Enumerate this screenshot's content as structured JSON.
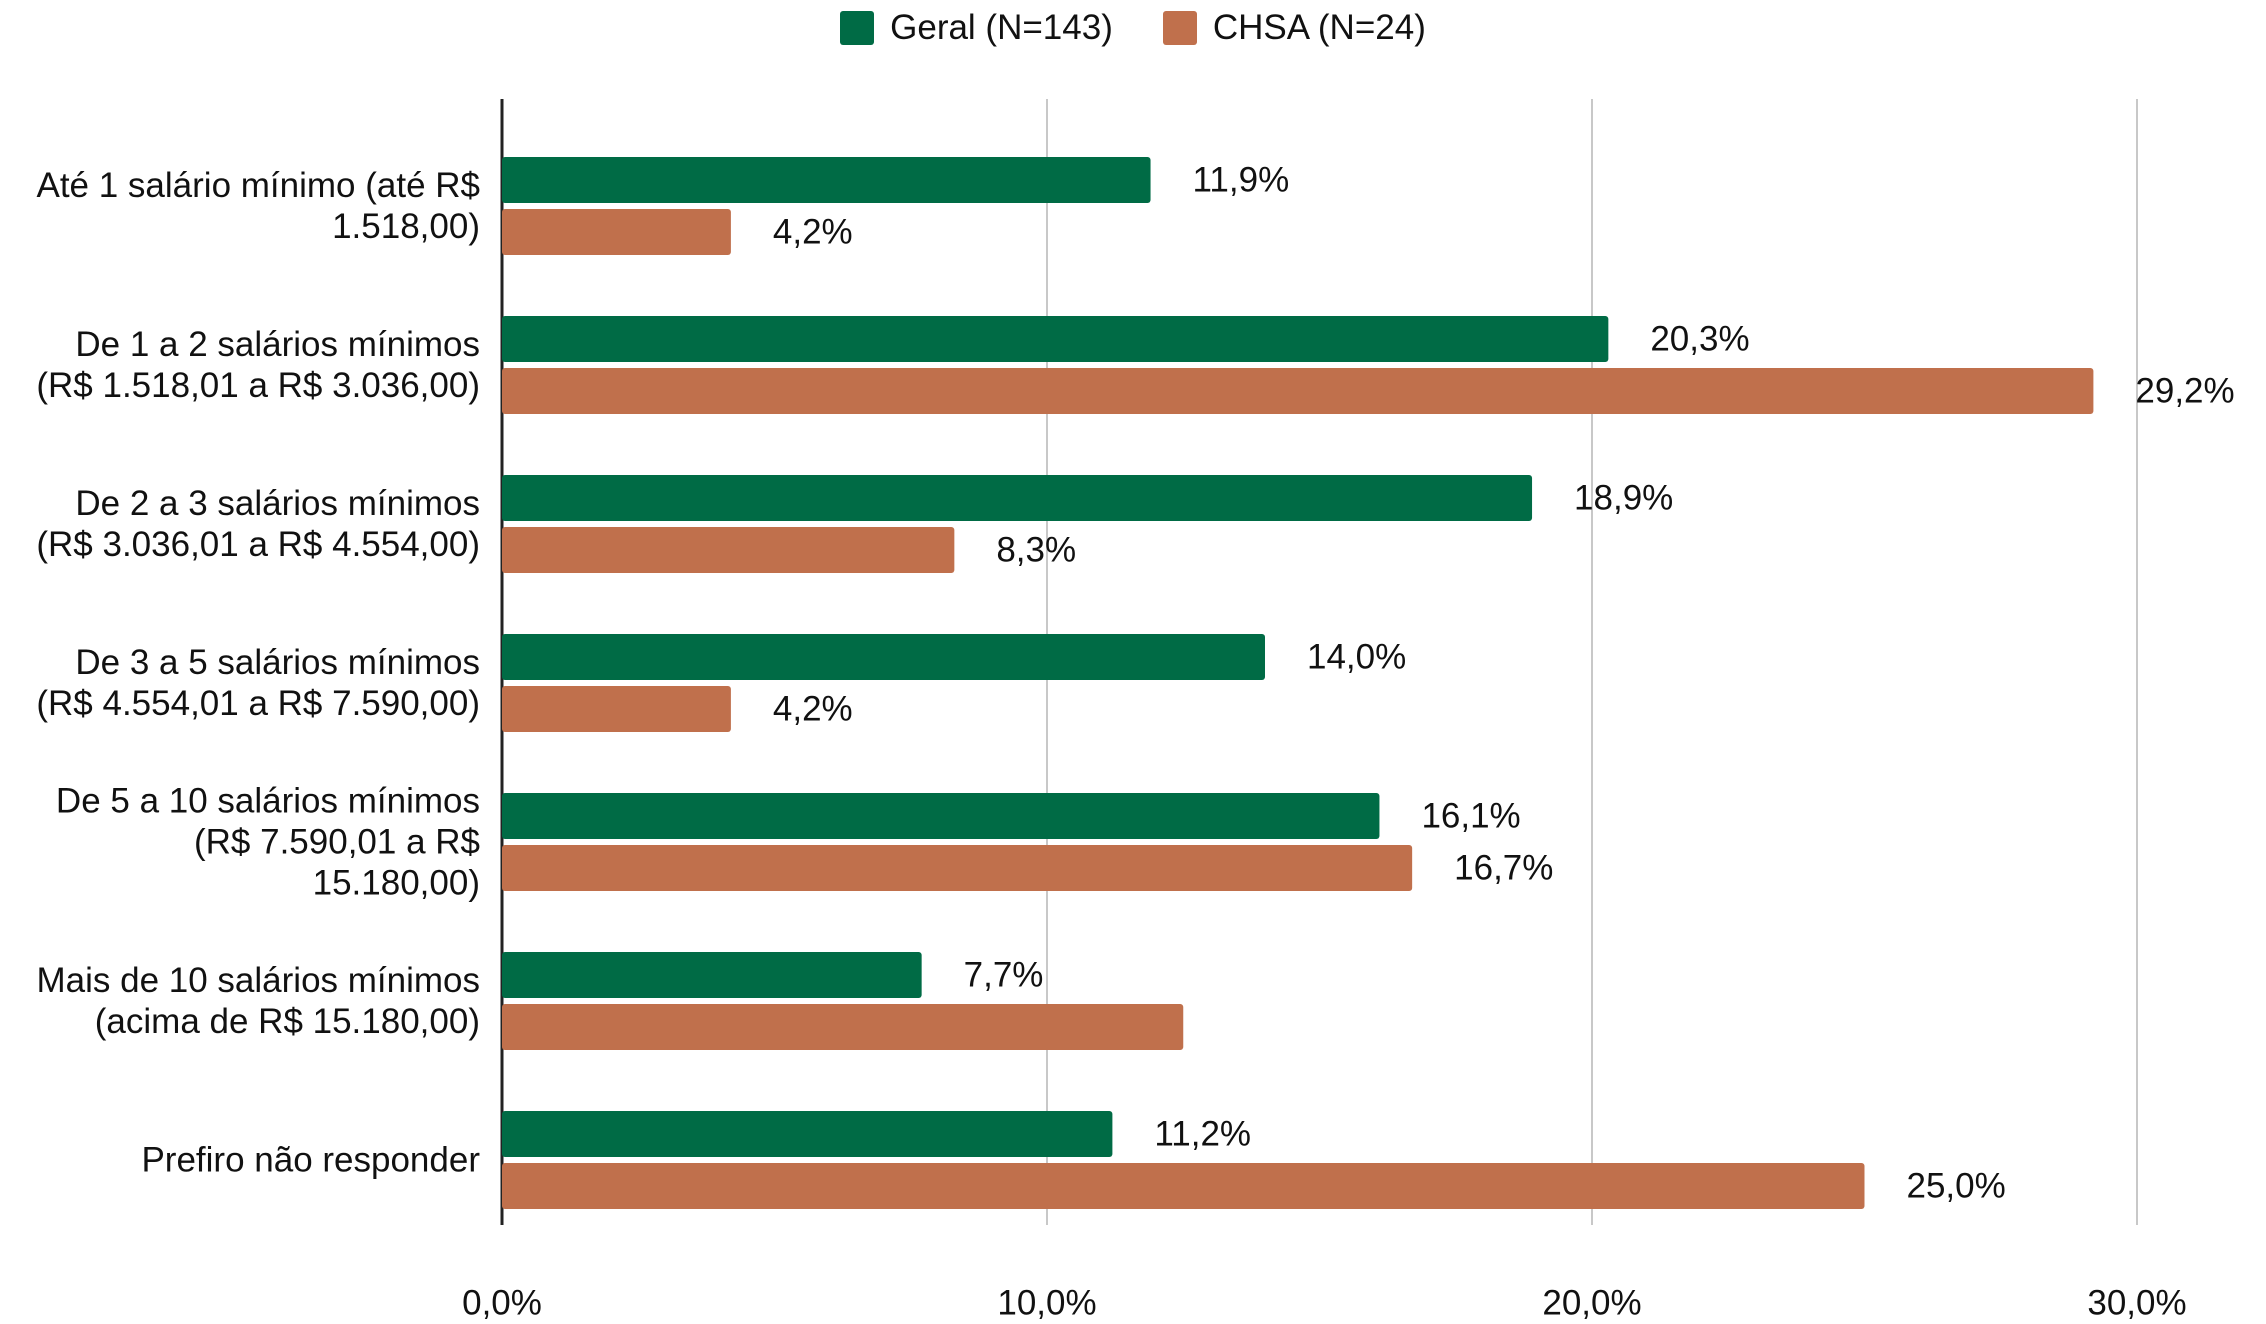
{
  "chart_data": {
    "type": "hbar",
    "categories": [
      "Até 1 salário mínimo (até R$ 1.518,00)",
      "De 1 a 2 salários mínimos (R$ 1.518,01 a R$ 3.036,00)",
      "De 2 a 3 salários mínimos (R$ 3.036,01 a R$ 4.554,00)",
      "De 3 a 5 salários mínimos (R$ 4.554,01 a R$ 7.590,00)",
      "De 5 a 10 salários mínimos (R$ 7.590,01 a R$ 15.180,00)",
      "Mais de 10 salários mínimos (acima de R$ 15.180,00)",
      "Prefiro não responder"
    ],
    "series": [
      {
        "name": "Geral (N=143)",
        "color": "#006b45",
        "values": [
          11.9,
          20.3,
          18.9,
          14.0,
          16.1,
          7.7,
          11.2
        ],
        "value_labels": [
          "11,9%",
          "20,3%",
          "18,9%",
          "14,0%",
          "16,1%",
          "7,7%",
          "11,2%"
        ]
      },
      {
        "name": "CHSA (N=24)",
        "color": "#c0704c",
        "values": [
          4.2,
          29.2,
          8.3,
          4.2,
          16.7,
          12.5,
          25.0
        ],
        "value_labels": [
          "4,2%",
          "29,2%",
          "8,3%",
          "4,2%",
          "16,7%",
          null,
          "25,0%"
        ]
      }
    ],
    "xlim": [
      0,
      30
    ],
    "xticks": [
      {
        "value": 0,
        "label": "0,0%"
      },
      {
        "value": 10,
        "label": "10,0%"
      },
      {
        "value": 20,
        "label": "20,0%"
      },
      {
        "value": 30,
        "label": "30,0%"
      }
    ],
    "grid": true,
    "legend": "top"
  }
}
